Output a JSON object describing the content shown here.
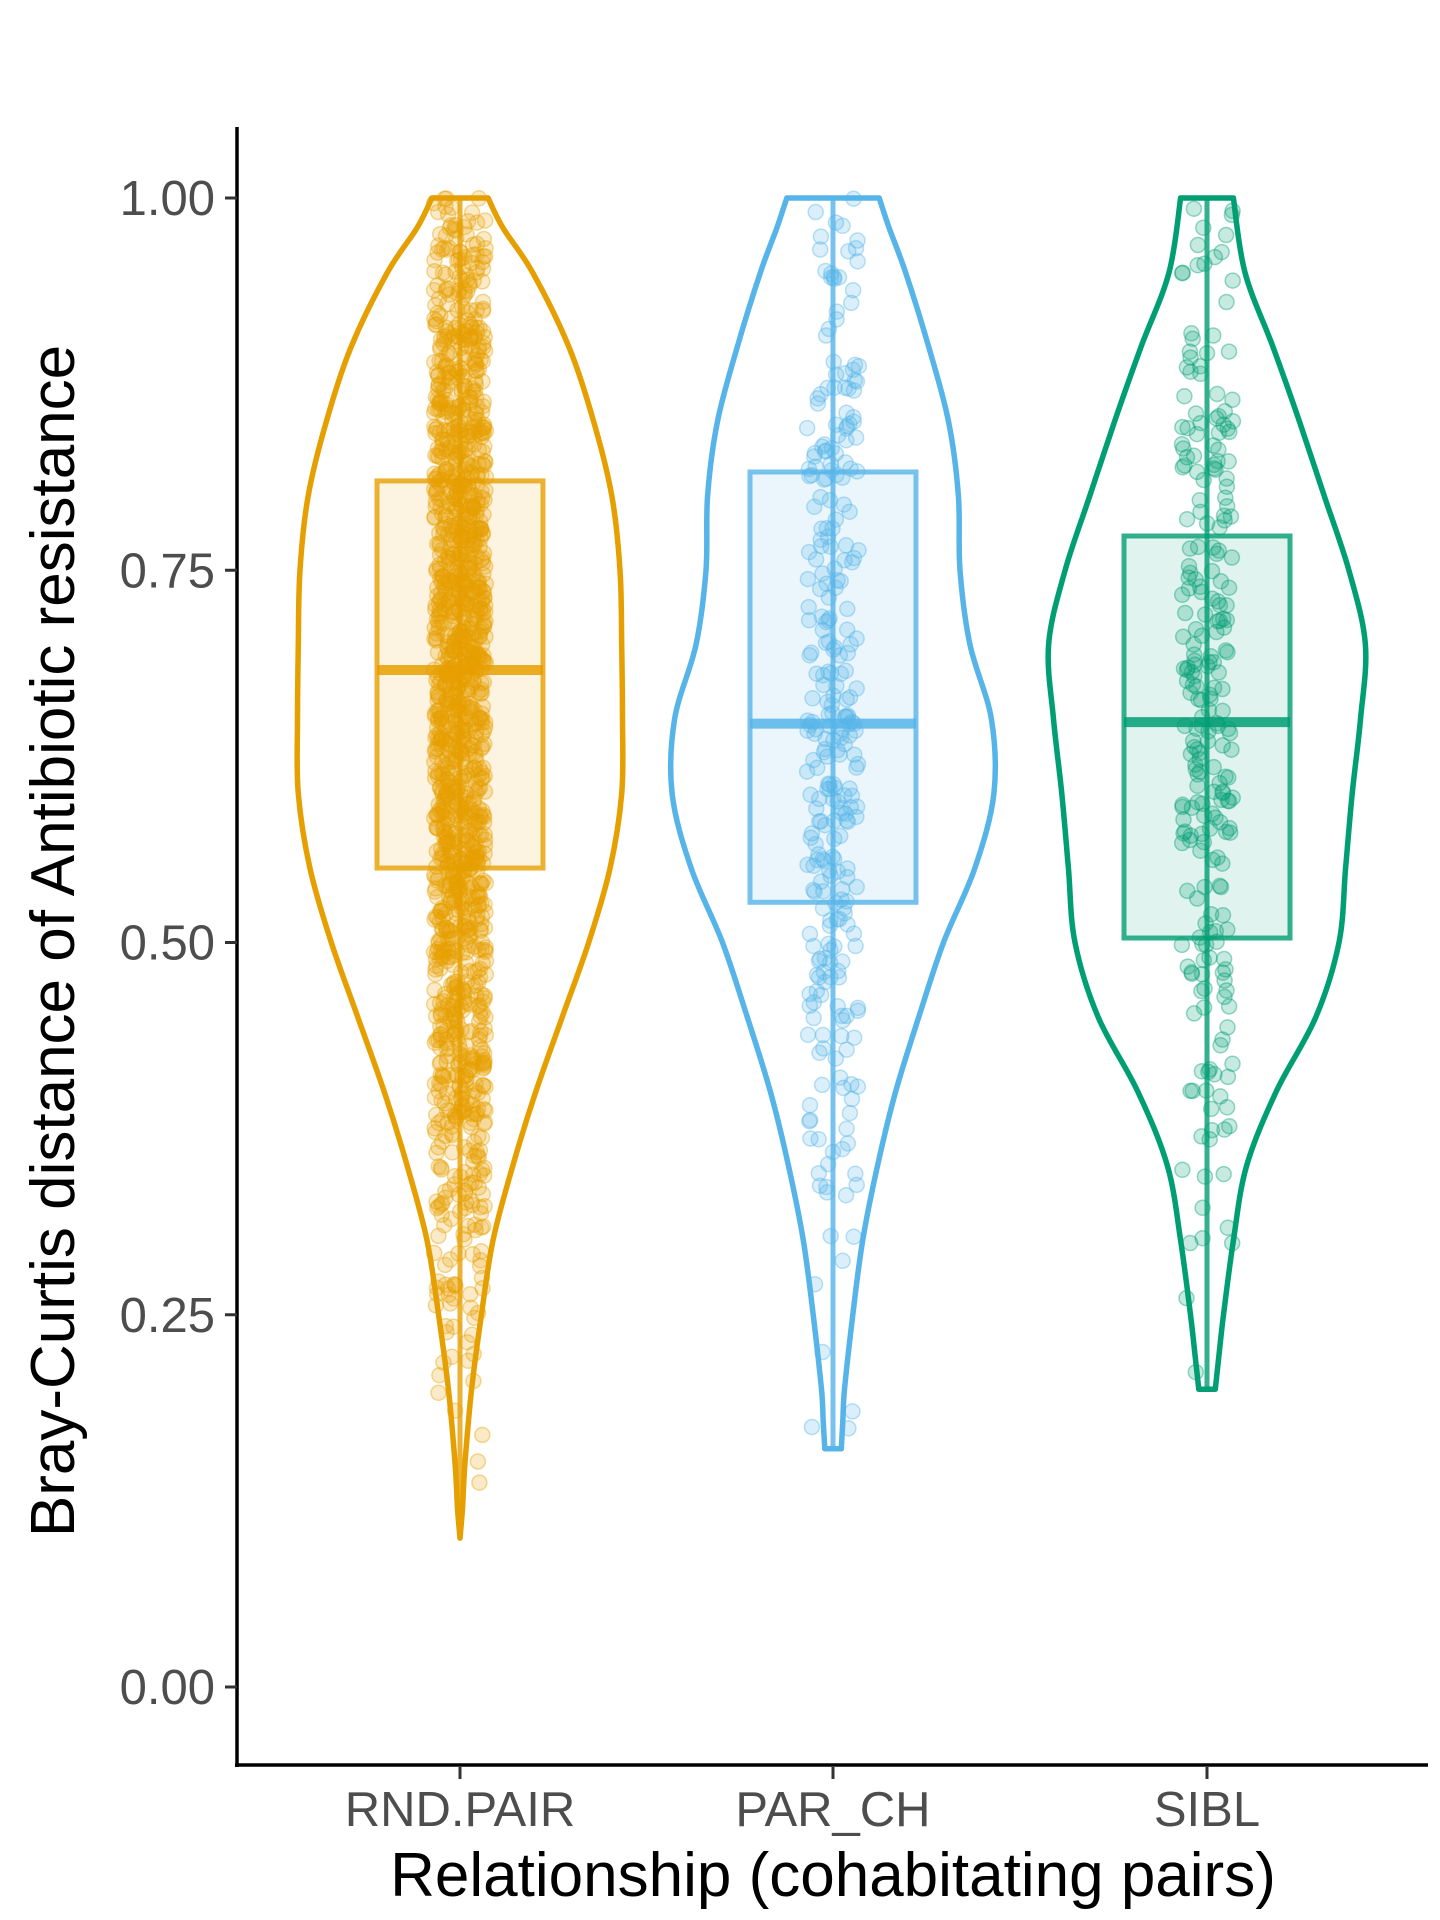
{
  "chart_data": {
    "type": "violin",
    "xlabel": "Relationship (cohabitating pairs)",
    "ylabel": "Bray-Curtis distance of Antibiotic resistance",
    "ylim": [
      -0.05,
      1.05
    ],
    "yticks": [
      "0.00",
      "0.25",
      "0.50",
      "0.75",
      "1.00"
    ],
    "grid": false,
    "categories": [
      "RND.PAIR",
      "PAR_CH",
      "SIBL"
    ],
    "groups": [
      {
        "category": "RND.PAIR",
        "color": "#E69F00",
        "box": {
          "q1": 0.55,
          "median": 0.683,
          "q3": 0.81
        },
        "range": [
          0.1,
          1.0
        ],
        "n_points": 1500,
        "violin_halfwidth": [
          [
            0.1,
            0.0
          ],
          [
            0.12,
            0.015
          ],
          [
            0.15,
            0.03
          ],
          [
            0.2,
            0.07
          ],
          [
            0.25,
            0.13
          ],
          [
            0.3,
            0.2
          ],
          [
            0.35,
            0.32
          ],
          [
            0.4,
            0.46
          ],
          [
            0.45,
            0.62
          ],
          [
            0.5,
            0.78
          ],
          [
            0.55,
            0.91
          ],
          [
            0.6,
            0.98
          ],
          [
            0.65,
            0.985
          ],
          [
            0.7,
            0.98
          ],
          [
            0.75,
            0.97
          ],
          [
            0.8,
            0.92
          ],
          [
            0.85,
            0.81
          ],
          [
            0.9,
            0.66
          ],
          [
            0.95,
            0.44
          ],
          [
            0.98,
            0.26
          ],
          [
            1.0,
            0.17
          ]
        ]
      },
      {
        "category": "PAR_CH",
        "color": "#56B4E9",
        "box": {
          "q1": 0.527,
          "median": 0.647,
          "q3": 0.816
        },
        "range": [
          0.16,
          1.0
        ],
        "n_points": 300,
        "violin_halfwidth": [
          [
            0.16,
            0.05
          ],
          [
            0.18,
            0.06
          ],
          [
            0.2,
            0.07
          ],
          [
            0.25,
            0.12
          ],
          [
            0.3,
            0.18
          ],
          [
            0.35,
            0.27
          ],
          [
            0.4,
            0.38
          ],
          [
            0.45,
            0.52
          ],
          [
            0.5,
            0.67
          ],
          [
            0.55,
            0.86
          ],
          [
            0.6,
            0.975
          ],
          [
            0.65,
            0.96
          ],
          [
            0.7,
            0.83
          ],
          [
            0.75,
            0.77
          ],
          [
            0.8,
            0.76
          ],
          [
            0.85,
            0.7
          ],
          [
            0.9,
            0.58
          ],
          [
            0.95,
            0.44
          ],
          [
            0.98,
            0.34
          ],
          [
            1.0,
            0.28
          ]
        ]
      },
      {
        "category": "SIBL",
        "color": "#009E73",
        "box": {
          "q1": 0.503,
          "median": 0.648,
          "q3": 0.773
        },
        "range": [
          0.2,
          1.0
        ],
        "n_points": 250,
        "violin_halfwidth": [
          [
            0.2,
            0.05
          ],
          [
            0.22,
            0.07
          ],
          [
            0.25,
            0.1
          ],
          [
            0.3,
            0.16
          ],
          [
            0.35,
            0.24
          ],
          [
            0.4,
            0.42
          ],
          [
            0.45,
            0.66
          ],
          [
            0.5,
            0.8
          ],
          [
            0.55,
            0.84
          ],
          [
            0.6,
            0.88
          ],
          [
            0.65,
            0.93
          ],
          [
            0.7,
            0.96
          ],
          [
            0.75,
            0.86
          ],
          [
            0.8,
            0.71
          ],
          [
            0.85,
            0.56
          ],
          [
            0.9,
            0.4
          ],
          [
            0.95,
            0.23
          ],
          [
            1.0,
            0.16
          ]
        ]
      }
    ]
  }
}
